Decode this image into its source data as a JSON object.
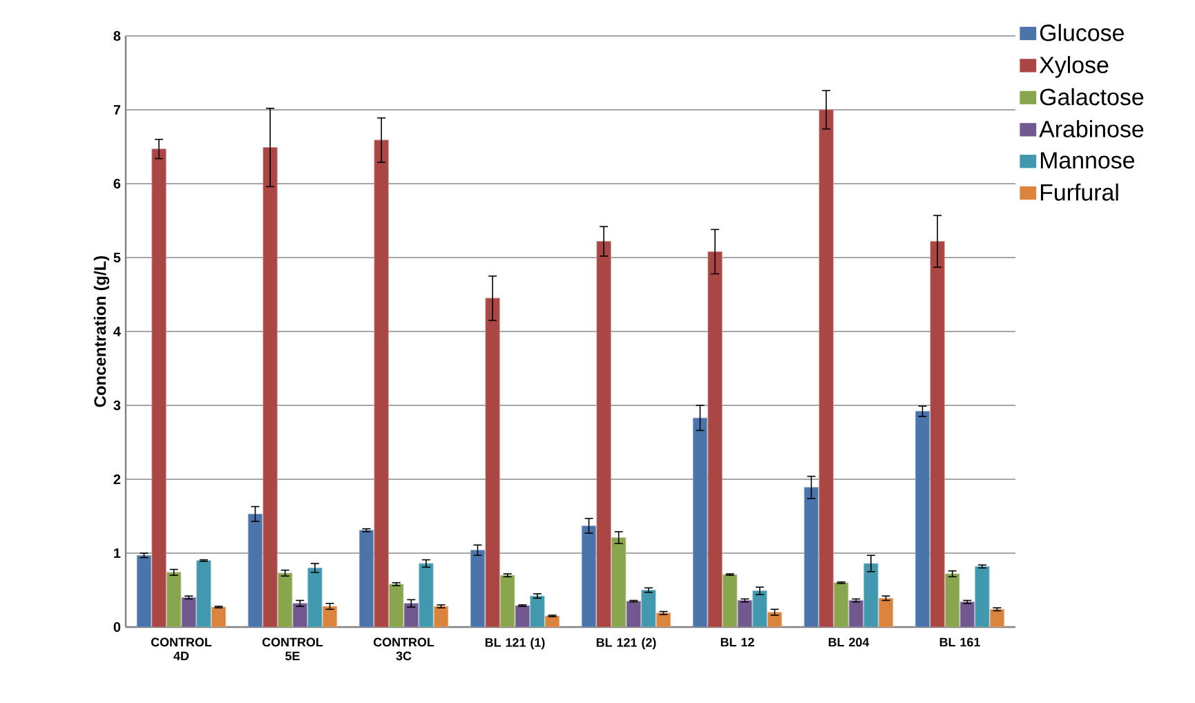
{
  "chart_data": {
    "type": "bar",
    "ylabel": "Concentration (g/L)",
    "categories": [
      "CONTROL 4D",
      "CONTROL 5E",
      "CONTROL 3C",
      "BL 121 (1)",
      "BL 121 (2)",
      "BL 12",
      "BL 204",
      "BL 161"
    ],
    "series": [
      {
        "name": "Glucose",
        "color": "#4a74aa",
        "values": [
          0.97,
          1.53,
          1.31,
          1.04,
          1.37,
          2.83,
          1.89,
          2.92
        ],
        "errors": [
          0.03,
          0.1,
          0.02,
          0.07,
          0.1,
          0.17,
          0.15,
          0.07
        ]
      },
      {
        "name": "Xylose",
        "color": "#aa4644",
        "values": [
          6.47,
          6.49,
          6.59,
          4.45,
          5.22,
          5.08,
          7.0,
          5.22
        ],
        "errors": [
          0.13,
          0.53,
          0.3,
          0.3,
          0.2,
          0.3,
          0.26,
          0.35
        ]
      },
      {
        "name": "Galactose",
        "color": "#89a54e",
        "values": [
          0.74,
          0.73,
          0.58,
          0.7,
          1.21,
          0.71,
          0.6,
          0.72
        ],
        "errors": [
          0.04,
          0.04,
          0.02,
          0.02,
          0.08,
          0.01,
          0.01,
          0.04
        ]
      },
      {
        "name": "Arabinose",
        "color": "#71588f",
        "values": [
          0.4,
          0.32,
          0.32,
          0.29,
          0.35,
          0.36,
          0.36,
          0.34
        ],
        "errors": [
          0.02,
          0.04,
          0.05,
          0.01,
          0.01,
          0.02,
          0.02,
          0.02
        ]
      },
      {
        "name": "Mannose",
        "color": "#4198af",
        "values": [
          0.9,
          0.8,
          0.86,
          0.42,
          0.5,
          0.49,
          0.86,
          0.82
        ],
        "errors": [
          0.01,
          0.06,
          0.05,
          0.03,
          0.03,
          0.05,
          0.11,
          0.02
        ]
      },
      {
        "name": "Furfural",
        "color": "#db843d",
        "values": [
          0.27,
          0.28,
          0.28,
          0.15,
          0.19,
          0.2,
          0.39,
          0.24
        ],
        "errors": [
          0.01,
          0.04,
          0.02,
          0.01,
          0.02,
          0.04,
          0.03,
          0.02
        ]
      }
    ],
    "ylim": [
      0,
      8
    ],
    "yticks": [
      0,
      1,
      2,
      3,
      4,
      5,
      6,
      7,
      8
    ],
    "grid": "y",
    "legend": "top right"
  }
}
